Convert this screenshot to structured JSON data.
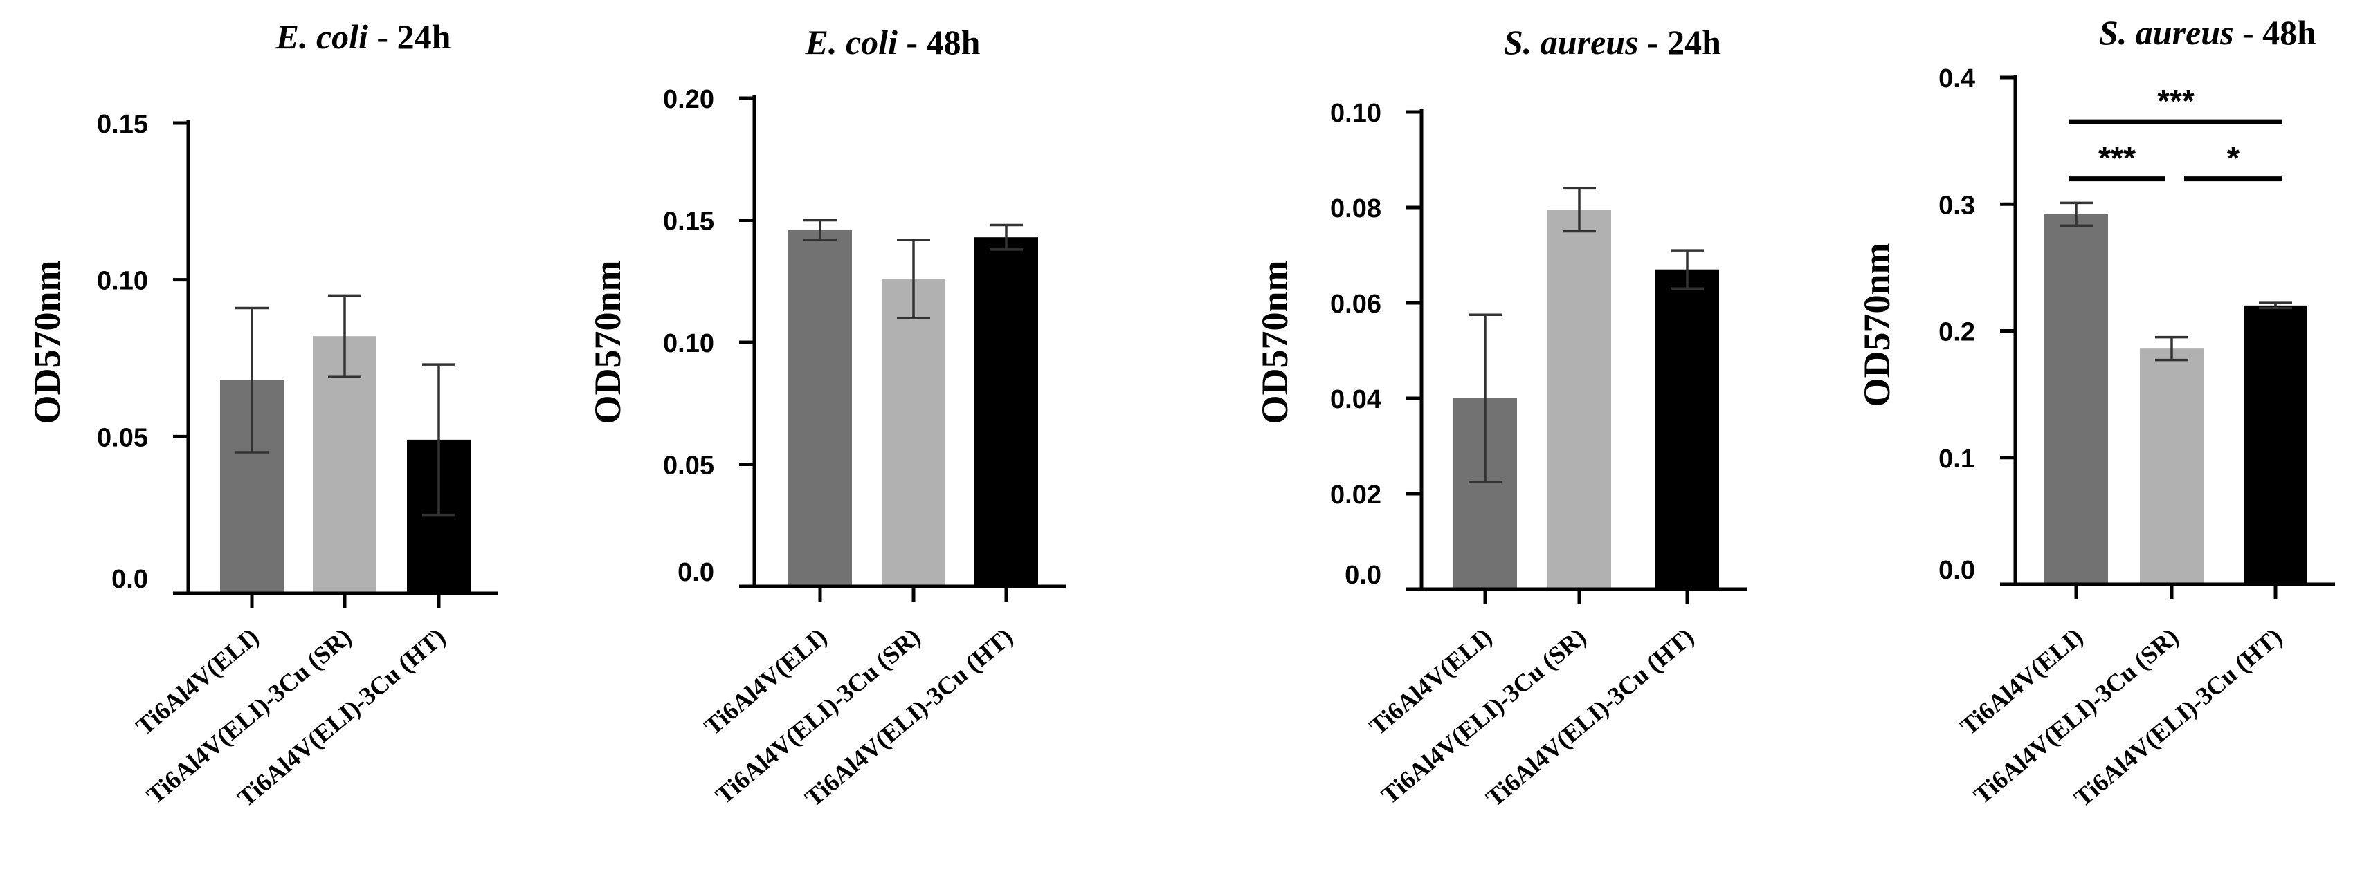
{
  "figure": {
    "ylabel": "OD570nm",
    "categories": [
      "Ti6Al4V(ELI)",
      "Ti6Al4V(ELI)-3Cu (SR)",
      "Ti6Al4V(ELI)-3Cu (HT)"
    ],
    "bar_colors": [
      "#727272",
      "#b1b1b1",
      "#000000"
    ]
  },
  "chart_data": [
    {
      "type": "bar",
      "title_italic": "E. coli",
      "title_rest": " - 24h",
      "ylabel": "OD570nm",
      "categories": [
        "Ti6Al4V(ELI)",
        "Ti6Al4V(ELI)-3Cu (SR)",
        "Ti6Al4V(ELI)-3Cu (HT)"
      ],
      "values": [
        0.068,
        0.082,
        0.049
      ],
      "errors": [
        0.023,
        0.013,
        0.024
      ],
      "ylim": [
        0,
        0.15
      ],
      "yticks": [
        0.0,
        0.05,
        0.1,
        0.15
      ],
      "ytick_labels": [
        "0.0",
        "0.05",
        "0.10",
        "0.15"
      ],
      "significance": []
    },
    {
      "type": "bar",
      "title_italic": "E. coli",
      "title_rest": " - 48h",
      "ylabel": "OD570nm",
      "categories": [
        "Ti6Al4V(ELI)",
        "Ti6Al4V(ELI)-3Cu (SR)",
        "Ti6Al4V(ELI)-3Cu (HT)"
      ],
      "values": [
        0.146,
        0.126,
        0.143
      ],
      "errors": [
        0.004,
        0.016,
        0.005
      ],
      "ylim": [
        0,
        0.2
      ],
      "yticks": [
        0.0,
        0.05,
        0.1,
        0.15,
        0.2
      ],
      "ytick_labels": [
        "0.0",
        "0.05",
        "0.10",
        "0.15",
        "0.20"
      ],
      "significance": []
    },
    {
      "type": "bar",
      "title_italic": "S. aureus",
      "title_rest": " - 24h",
      "ylabel": "OD570nm",
      "categories": [
        "Ti6Al4V(ELI)",
        "Ti6Al4V(ELI)-3Cu (SR)",
        "Ti6Al4V(ELI)-3Cu (HT)"
      ],
      "values": [
        0.04,
        0.0795,
        0.067
      ],
      "errors": [
        0.0175,
        0.0045,
        0.004
      ],
      "ylim": [
        0,
        0.1
      ],
      "yticks": [
        0.0,
        0.02,
        0.04,
        0.06,
        0.08,
        0.1
      ],
      "ytick_labels": [
        "0.0",
        "0.02",
        "0.04",
        "0.06",
        "0.08",
        "0.10"
      ],
      "significance": []
    },
    {
      "type": "bar",
      "title_italic": "S. aureus",
      "title_rest": " - 48h",
      "ylabel": "OD570nm",
      "categories": [
        "Ti6Al4V(ELI)",
        "Ti6Al4V(ELI)-3Cu (SR)",
        "Ti6Al4V(ELI)-3Cu (HT)"
      ],
      "values": [
        0.292,
        0.186,
        0.22
      ],
      "errors": [
        0.009,
        0.009,
        0.002
      ],
      "ylim": [
        0,
        0.4
      ],
      "yticks": [
        0.0,
        0.1,
        0.2,
        0.3,
        0.4
      ],
      "ytick_labels": [
        "0.0",
        "0.1",
        "0.2",
        "0.3",
        "0.4"
      ],
      "significance": [
        {
          "from": 0,
          "to": 2,
          "y": 0.365,
          "label": "***"
        },
        {
          "from": 0,
          "to": 1,
          "y": 0.32,
          "label": "***"
        },
        {
          "from": 1,
          "to": 2,
          "y": 0.32,
          "label": "*"
        }
      ]
    }
  ]
}
